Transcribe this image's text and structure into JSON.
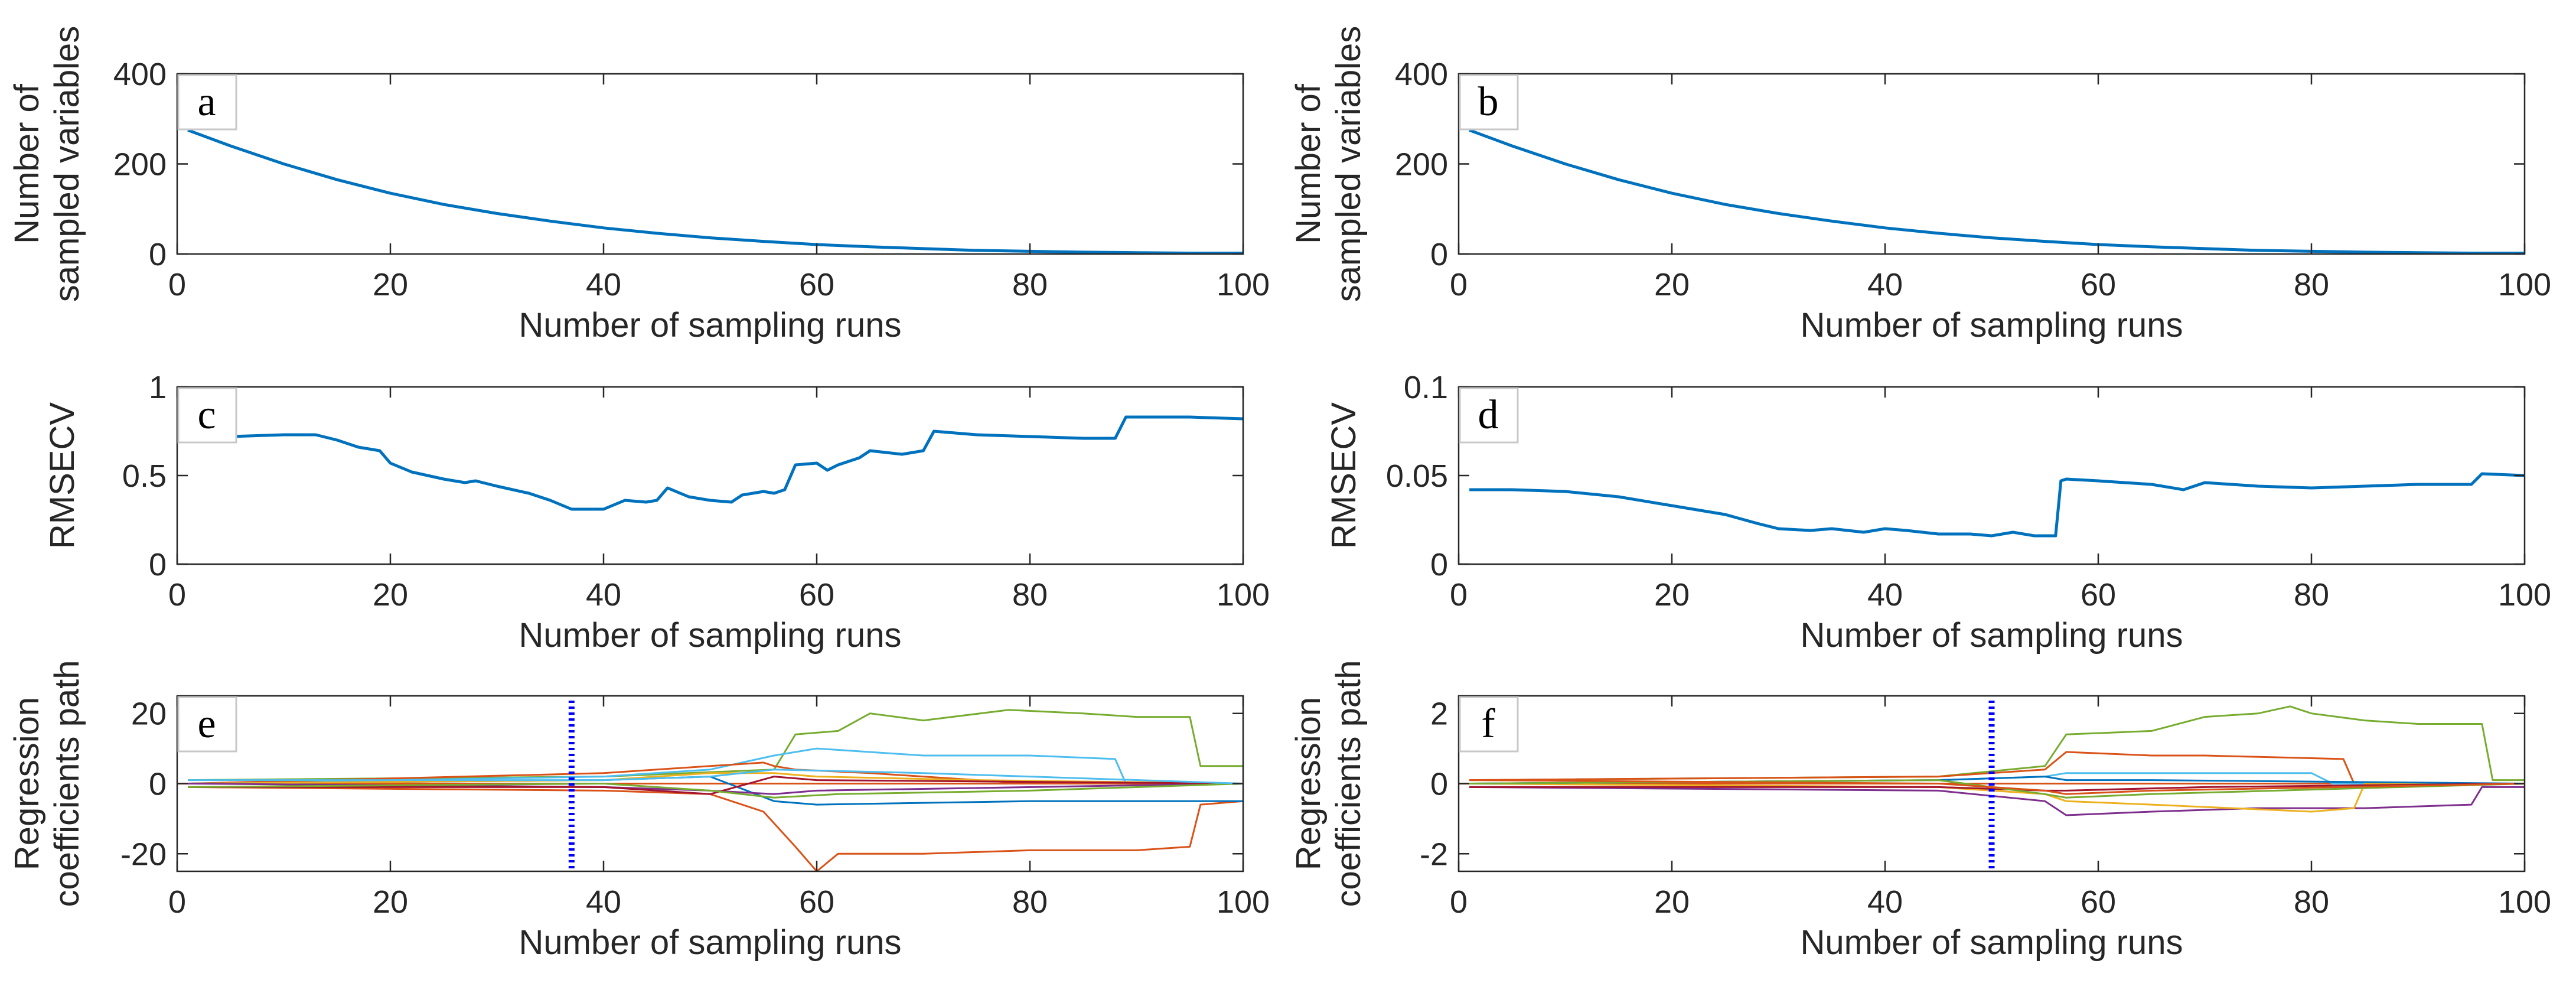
{
  "figure": {
    "description_free": true
  },
  "chart_data": [
    {
      "id": "a",
      "type": "line",
      "panel_label": "a",
      "xlabel": "Number of sampling runs",
      "ylabel": [
        "Number of",
        "sampled variables"
      ],
      "xlim": [
        0,
        100
      ],
      "ylim": [
        0,
        400
      ],
      "xticks": [
        0,
        20,
        40,
        60,
        80,
        100
      ],
      "yticks": [
        0,
        200,
        400
      ],
      "series": [
        {
          "name": "sampled variables",
          "color": "#0072BD",
          "x": [
            1,
            5,
            10,
            15,
            20,
            25,
            30,
            35,
            40,
            45,
            50,
            55,
            60,
            65,
            70,
            75,
            80,
            85,
            90,
            95,
            100
          ],
          "y": [
            275,
            240,
            200,
            165,
            135,
            110,
            90,
            73,
            58,
            46,
            36,
            28,
            21,
            16,
            12,
            8,
            6,
            4,
            3,
            2,
            2
          ]
        }
      ]
    },
    {
      "id": "b",
      "type": "line",
      "panel_label": "b",
      "xlabel": "Number of sampling runs",
      "ylabel": [
        "Number of",
        "sampled variables"
      ],
      "xlim": [
        0,
        100
      ],
      "ylim": [
        0,
        400
      ],
      "xticks": [
        0,
        20,
        40,
        60,
        80,
        100
      ],
      "yticks": [
        0,
        200,
        400
      ],
      "series": [
        {
          "name": "sampled variables",
          "color": "#0072BD",
          "x": [
            1,
            5,
            10,
            15,
            20,
            25,
            30,
            35,
            40,
            45,
            50,
            55,
            60,
            65,
            70,
            75,
            80,
            85,
            90,
            95,
            100
          ],
          "y": [
            275,
            240,
            200,
            165,
            135,
            110,
            90,
            73,
            58,
            46,
            36,
            28,
            21,
            16,
            12,
            8,
            6,
            4,
            3,
            2,
            2
          ]
        }
      ]
    },
    {
      "id": "c",
      "type": "line",
      "panel_label": "c",
      "xlabel": "Number of sampling runs",
      "ylabel": [
        "RMSECV"
      ],
      "xlim": [
        0,
        100
      ],
      "ylim": [
        0,
        1
      ],
      "xticks": [
        0,
        20,
        40,
        60,
        80,
        100
      ],
      "yticks": [
        0,
        0.5,
        1
      ],
      "series": [
        {
          "name": "RMSECV",
          "color": "#0072BD",
          "x": [
            1,
            5,
            10,
            13,
            15,
            17,
            19,
            20,
            22,
            25,
            27,
            28,
            30,
            33,
            35,
            37,
            38,
            40,
            42,
            44,
            45,
            46,
            48,
            50,
            52,
            53,
            55,
            56,
            57,
            58,
            60,
            61,
            62,
            64,
            65,
            68,
            70,
            71,
            75,
            80,
            85,
            88,
            89,
            95,
            100
          ],
          "y": [
            0.72,
            0.72,
            0.73,
            0.73,
            0.7,
            0.66,
            0.64,
            0.57,
            0.52,
            0.48,
            0.46,
            0.47,
            0.44,
            0.4,
            0.36,
            0.31,
            0.31,
            0.31,
            0.36,
            0.35,
            0.36,
            0.43,
            0.38,
            0.36,
            0.35,
            0.39,
            0.41,
            0.4,
            0.42,
            0.56,
            0.57,
            0.53,
            0.56,
            0.6,
            0.64,
            0.62,
            0.64,
            0.75,
            0.73,
            0.72,
            0.71,
            0.71,
            0.83,
            0.83,
            0.82
          ]
        }
      ]
    },
    {
      "id": "d",
      "type": "line",
      "panel_label": "d",
      "xlabel": "Number of sampling runs",
      "ylabel": [
        "RMSECV"
      ],
      "xlim": [
        0,
        100
      ],
      "ylim": [
        0,
        0.1
      ],
      "xticks": [
        0,
        20,
        40,
        60,
        80,
        100
      ],
      "yticks": [
        0,
        0.05,
        0.1
      ],
      "series": [
        {
          "name": "RMSECV",
          "color": "#0072BD",
          "x": [
            1,
            5,
            10,
            15,
            20,
            25,
            28,
            30,
            33,
            35,
            38,
            40,
            42,
            45,
            48,
            50,
            52,
            54,
            56,
            56.5,
            57,
            60,
            65,
            68,
            70,
            75,
            80,
            85,
            90,
            95,
            96,
            100
          ],
          "y": [
            0.042,
            0.042,
            0.041,
            0.038,
            0.033,
            0.028,
            0.023,
            0.02,
            0.019,
            0.02,
            0.018,
            0.02,
            0.019,
            0.017,
            0.017,
            0.016,
            0.018,
            0.016,
            0.016,
            0.047,
            0.048,
            0.047,
            0.045,
            0.042,
            0.046,
            0.044,
            0.043,
            0.044,
            0.045,
            0.045,
            0.051,
            0.05
          ]
        }
      ]
    },
    {
      "id": "e",
      "type": "line",
      "panel_label": "e",
      "xlabel": "Number of sampling runs",
      "ylabel": [
        "Regression",
        "coefficients path"
      ],
      "xlim": [
        0,
        100
      ],
      "ylim": [
        -25,
        25
      ],
      "xticks": [
        0,
        20,
        40,
        60,
        80,
        100
      ],
      "yticks": [
        -20,
        0,
        20
      ],
      "marker_x": 37,
      "marker_color": "#0000FF",
      "series": [
        {
          "color": "#77AC30",
          "x": [
            1,
            40,
            56,
            58,
            62,
            65,
            70,
            78,
            85,
            90,
            95,
            96,
            100
          ],
          "y": [
            1,
            2,
            4,
            14,
            15,
            20,
            18,
            21,
            20,
            19,
            19,
            5,
            5
          ]
        },
        {
          "color": "#D95319",
          "x": [
            1,
            40,
            50,
            55,
            58,
            60,
            62,
            70,
            80,
            90,
            95,
            96,
            100
          ],
          "y": [
            -1,
            -2,
            -3,
            -8,
            -18,
            -25,
            -20,
            -20,
            -19,
            -19,
            -18,
            -6,
            -5
          ]
        },
        {
          "color": "#4DBEEE",
          "x": [
            1,
            40,
            50,
            56,
            60,
            70,
            80,
            88,
            89,
            100
          ],
          "y": [
            0,
            2,
            4,
            8,
            10,
            8,
            8,
            7,
            0,
            0
          ]
        },
        {
          "color": "#D95319",
          "x": [
            1,
            40,
            50,
            55,
            56,
            58,
            65,
            70,
            80,
            100
          ],
          "y": [
            0,
            3,
            5,
            6,
            5,
            4,
            3,
            2,
            0,
            0
          ]
        },
        {
          "color": "#0072BD",
          "x": [
            1,
            40,
            50,
            56,
            60,
            80,
            100
          ],
          "y": [
            0,
            1,
            2,
            -5,
            -6,
            -5,
            -5
          ]
        },
        {
          "color": "#EDB120",
          "x": [
            1,
            40,
            50,
            56,
            60,
            75,
            100
          ],
          "y": [
            0,
            1,
            3,
            3,
            2,
            1,
            0
          ]
        },
        {
          "color": "#7E2F8E",
          "x": [
            1,
            40,
            50,
            56,
            60,
            100
          ],
          "y": [
            0,
            -1,
            -2,
            -3,
            -2,
            0
          ]
        },
        {
          "color": "#A2142F",
          "x": [
            1,
            40,
            50,
            56,
            60,
            100
          ],
          "y": [
            -1,
            -1,
            -3,
            2,
            1,
            0
          ]
        },
        {
          "color": "#77AC30",
          "x": [
            1,
            40,
            50,
            56,
            62,
            80,
            100
          ],
          "y": [
            -1,
            0,
            -2,
            -4,
            -3,
            -2,
            0
          ]
        },
        {
          "color": "#4DBEEE",
          "x": [
            1,
            40,
            50,
            56,
            70,
            100
          ],
          "y": [
            1,
            1,
            2,
            4,
            3,
            0
          ]
        }
      ]
    },
    {
      "id": "f",
      "type": "line",
      "panel_label": "f",
      "xlabel": "Number of sampling runs",
      "ylabel": [
        "Regression",
        "coefficients path"
      ],
      "xlim": [
        0,
        100
      ],
      "ylim": [
        -2.5,
        2.5
      ],
      "xticks": [
        0,
        20,
        40,
        60,
        80,
        100
      ],
      "yticks": [
        -2,
        0,
        2
      ],
      "marker_x": 50,
      "marker_color": "#0000FF",
      "series": [
        {
          "color": "#77AC30",
          "x": [
            1,
            45,
            55,
            57,
            65,
            70,
            75,
            78,
            80,
            85,
            90,
            96,
            97,
            100
          ],
          "y": [
            0.1,
            0.2,
            0.5,
            1.4,
            1.5,
            1.9,
            2.0,
            2.2,
            2.0,
            1.8,
            1.7,
            1.7,
            0.1,
            0.1
          ]
        },
        {
          "color": "#D95319",
          "x": [
            1,
            45,
            55,
            57,
            65,
            70,
            83,
            84,
            100
          ],
          "y": [
            0.1,
            0.2,
            0.4,
            0.9,
            0.8,
            0.8,
            0.7,
            0,
            0
          ]
        },
        {
          "color": "#4DBEEE",
          "x": [
            1,
            45,
            55,
            57,
            65,
            80,
            82,
            100
          ],
          "y": [
            0,
            0.1,
            0.2,
            0.3,
            0.3,
            0.3,
            0,
            0
          ]
        },
        {
          "color": "#7E2F8E",
          "x": [
            1,
            45,
            55,
            57,
            65,
            75,
            85,
            95,
            96,
            100
          ],
          "y": [
            -0.1,
            -0.2,
            -0.5,
            -0.9,
            -0.8,
            -0.7,
            -0.7,
            -0.6,
            -0.1,
            -0.1
          ]
        },
        {
          "color": "#EDB120",
          "x": [
            1,
            45,
            55,
            57,
            65,
            80,
            84,
            85,
            100
          ],
          "y": [
            0,
            -0.1,
            -0.3,
            -0.5,
            -0.6,
            -0.8,
            -0.7,
            0,
            0
          ]
        },
        {
          "color": "#0072BD",
          "x": [
            1,
            45,
            55,
            57,
            65,
            100
          ],
          "y": [
            0,
            0.1,
            0.2,
            0.1,
            0.1,
            0
          ]
        },
        {
          "color": "#A2142F",
          "x": [
            1,
            45,
            55,
            57,
            70,
            100
          ],
          "y": [
            -0.1,
            -0.1,
            -0.2,
            -0.2,
            -0.1,
            0
          ]
        },
        {
          "color": "#77AC30",
          "x": [
            1,
            45,
            55,
            57,
            65,
            100
          ],
          "y": [
            0,
            0.1,
            -0.3,
            -0.4,
            -0.3,
            0
          ]
        },
        {
          "color": "#D95319",
          "x": [
            1,
            45,
            55,
            57,
            65,
            100
          ],
          "y": [
            0.1,
            0,
            -0.2,
            -0.3,
            -0.2,
            0
          ]
        }
      ]
    }
  ]
}
